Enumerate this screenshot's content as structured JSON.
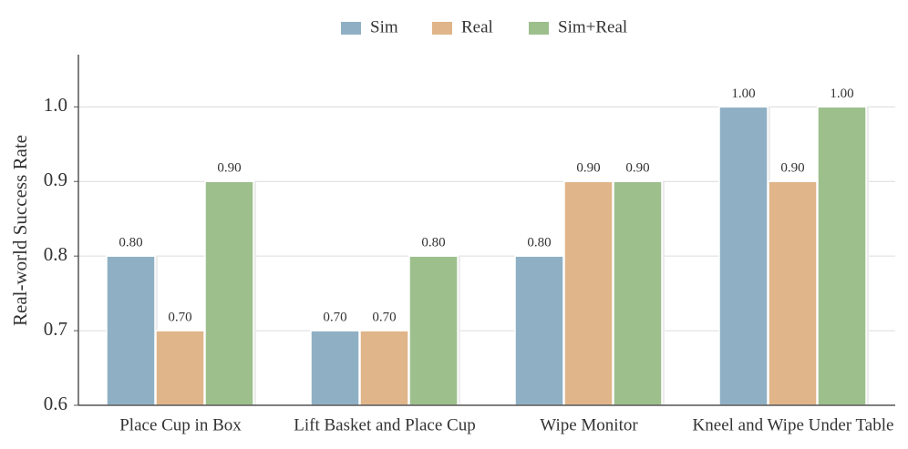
{
  "chart_data": {
    "type": "bar",
    "ylabel": "Real-world Success Rate",
    "categories": [
      "Place Cup in Box",
      "Lift Basket and Place Cup",
      "Wipe Monitor",
      "Kneel and Wipe Under Table"
    ],
    "series": [
      {
        "name": "Sim",
        "color": "#8fb0c4",
        "values": [
          0.8,
          0.7,
          0.8,
          1.0
        ],
        "value_labels": [
          "0.80",
          "0.70",
          "0.80",
          "1.00"
        ]
      },
      {
        "name": "Real",
        "color": "#e0b589",
        "values": [
          0.7,
          0.7,
          0.9,
          0.9
        ],
        "value_labels": [
          "0.70",
          "0.70",
          "0.90",
          "0.90"
        ]
      },
      {
        "name": "Sim+Real",
        "color": "#9dbf8c",
        "values": [
          0.9,
          0.8,
          0.9,
          1.0
        ],
        "value_labels": [
          "0.90",
          "0.80",
          "0.90",
          "1.00"
        ]
      }
    ],
    "ylim": [
      0.6,
      1.07
    ],
    "yticks": [
      0.6,
      0.7,
      0.8,
      0.9,
      {
        "value": 1.0,
        "label": "1.0"
      }
    ],
    "grid": true,
    "legend": "top"
  }
}
